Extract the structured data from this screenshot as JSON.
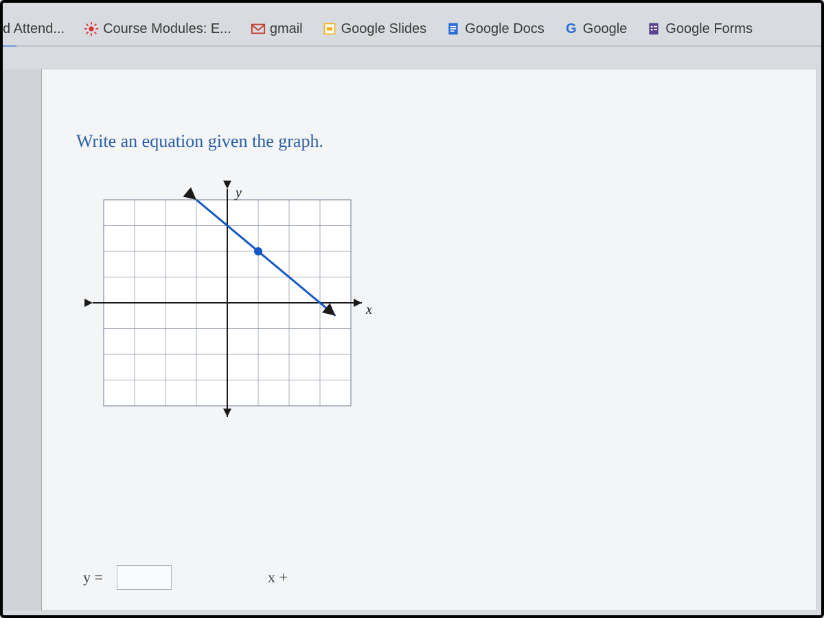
{
  "bookmarks": [
    {
      "label": "d Attend...",
      "icon": "none",
      "name": "bookmark-attend"
    },
    {
      "label": "Course Modules: E...",
      "icon": "sunburst",
      "name": "bookmark-course-modules"
    },
    {
      "label": "gmail",
      "icon": "gmail",
      "name": "bookmark-gmail"
    },
    {
      "label": "Google Slides",
      "icon": "slides",
      "name": "bookmark-google-slides"
    },
    {
      "label": "Google Docs",
      "icon": "docs",
      "name": "bookmark-google-docs"
    },
    {
      "label": "Google",
      "icon": "google-g",
      "name": "bookmark-google"
    },
    {
      "label": "Google Forms",
      "icon": "forms",
      "name": "bookmark-google-forms"
    }
  ],
  "prompt_text": "Write an equation given the graph.",
  "graph": {
    "type": "line",
    "xlim": [
      -4,
      4
    ],
    "ylim": [
      -4,
      4
    ],
    "xtick_step": 1,
    "ytick_step": 1,
    "xlabel": "x",
    "ylabel": "y",
    "grid_color": "#6e7b8f",
    "axis_color": "#1a1a1a",
    "background_color": "#ffffff",
    "line_color": "#1557c4",
    "line_width": 3,
    "line_points": [
      [
        -1,
        4
      ],
      [
        3.5,
        -0.5
      ]
    ],
    "marker_point": [
      1,
      2
    ],
    "marker_color": "#1557c4",
    "marker_radius": 6,
    "grid_width": 1
  },
  "answer": {
    "lhs": "y =",
    "slope_value": "",
    "rhs_label": "x +",
    "intercept_value": ""
  },
  "colors": {
    "page_bg": "#f4f5f6",
    "body_bg": "#d8dce0",
    "prompt_color": "#2a5fa8"
  }
}
